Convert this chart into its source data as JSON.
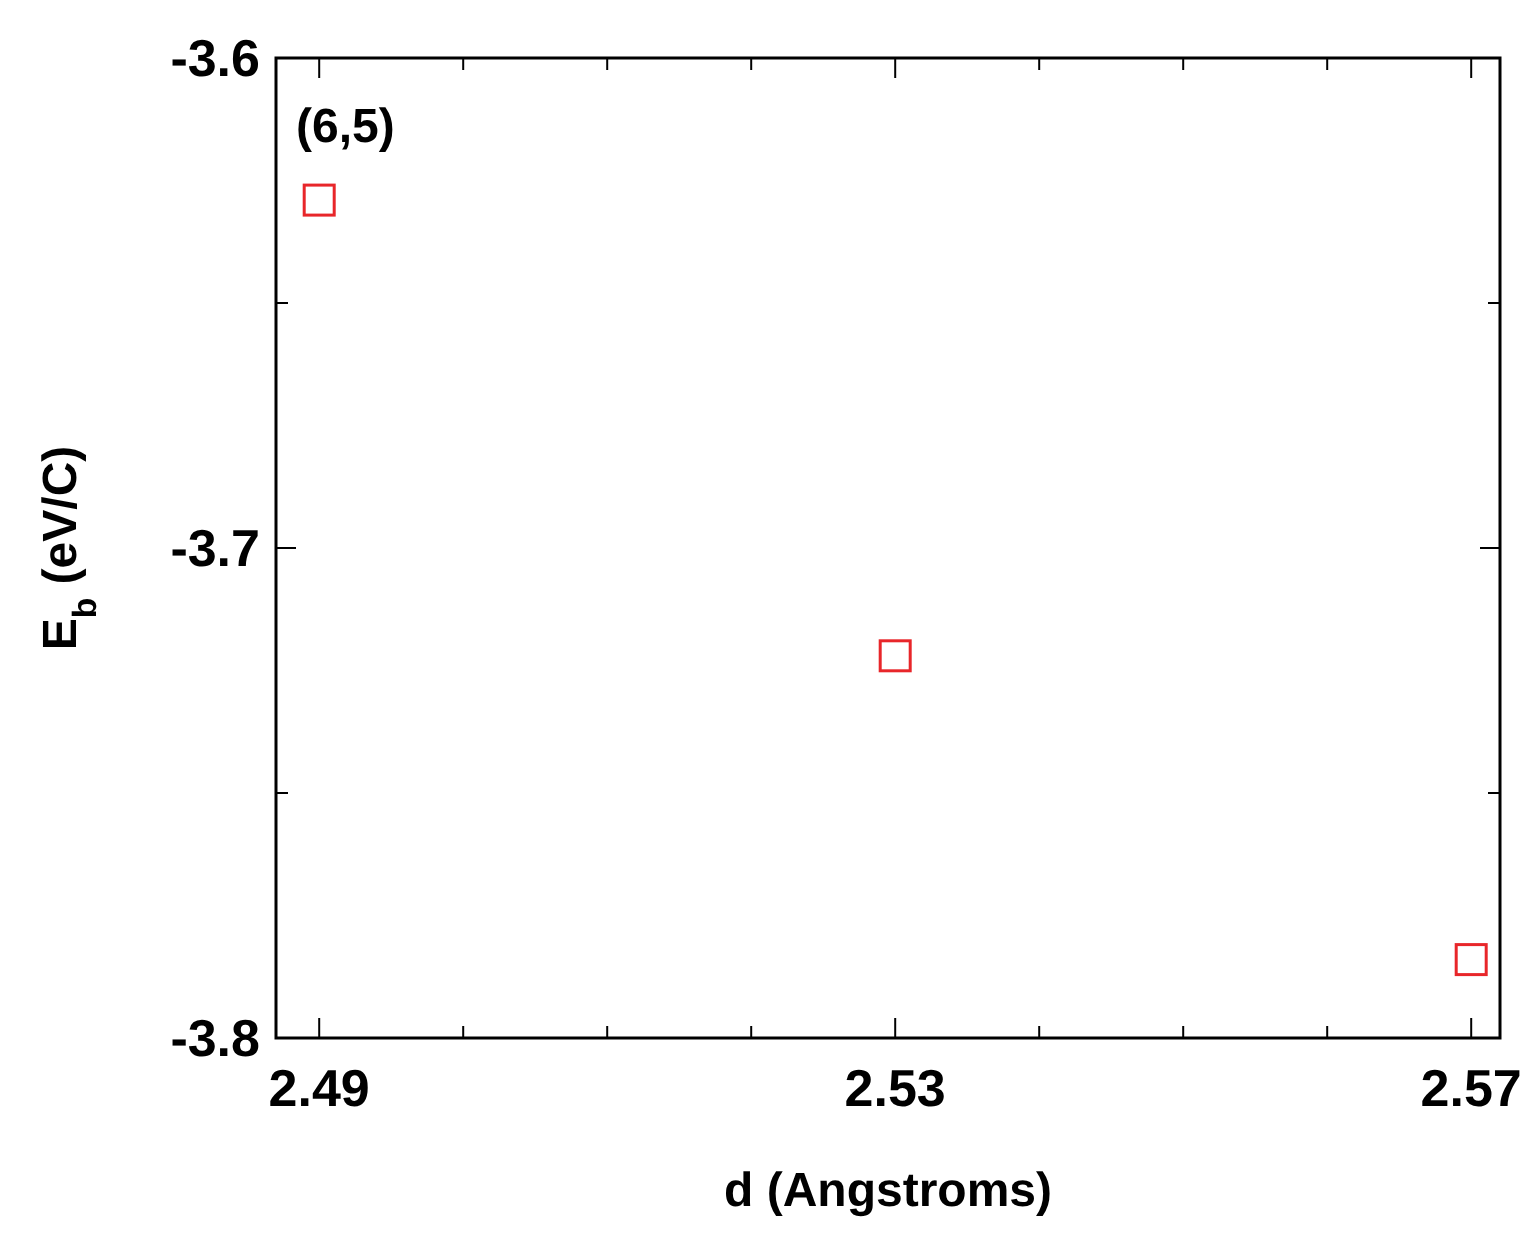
{
  "chart_data": {
    "type": "scatter",
    "xlabel": "d (Angstroms)",
    "ylabel": "E$_{b}$ (eV/C)",
    "annotations": [
      "(6,5)"
    ],
    "x": [
      2.49,
      2.53,
      2.57
    ],
    "series": [
      {
        "color": "#e8262a",
        "values": [
          -3.629,
          -3.722,
          -3.784
        ]
      }
    ],
    "marker": "square",
    "xlim": [
      2.487,
      2.572
    ],
    "xticks": [
      2.49,
      {
        "value": 2.5,
        "label": null
      },
      {
        "value": 2.51,
        "label": null
      },
      {
        "value": 2.52,
        "label": null
      },
      2.53,
      {
        "value": 2.54,
        "label": null
      },
      {
        "value": 2.55,
        "label": null
      },
      {
        "value": 2.56,
        "label": null
      },
      2.57
    ],
    "ylim": [
      -3.8,
      -3.6
    ],
    "yticks": [
      -3.8,
      {
        "value": -3.75,
        "label": null
      },
      -3.7,
      {
        "value": -3.65,
        "label": null
      },
      -3.6
    ]
  }
}
